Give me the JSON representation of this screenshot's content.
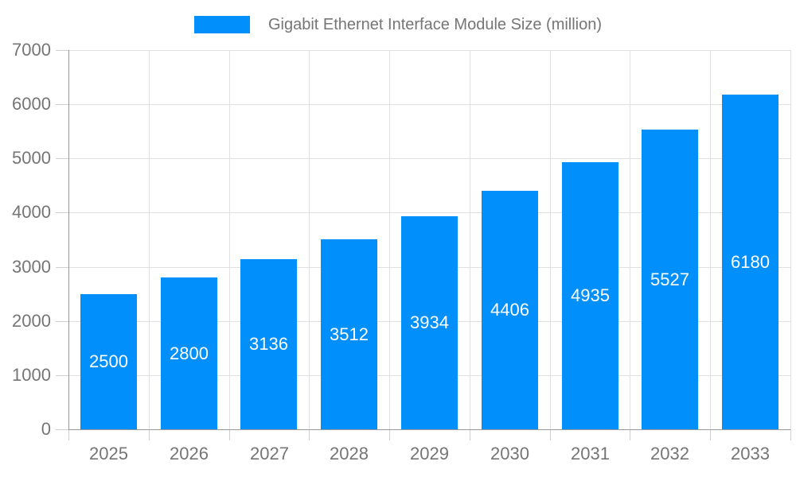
{
  "chart_data": {
    "type": "bar",
    "title": "Gigabit Ethernet Interface Module Size (million)",
    "legend_position": "top",
    "categories": [
      "2025",
      "2026",
      "2027",
      "2028",
      "2029",
      "2030",
      "2031",
      "2032",
      "2033"
    ],
    "values": [
      2500,
      2800,
      3136,
      3512,
      3934,
      4406,
      4935,
      5527,
      6180
    ],
    "series": [
      {
        "name": "Gigabit Ethernet Interface Module Size (million)",
        "values": [
          2500,
          2800,
          3136,
          3512,
          3934,
          4406,
          4935,
          5527,
          6180
        ]
      }
    ],
    "xlabel": "",
    "ylabel": "",
    "ylim": [
      0,
      7000
    ],
    "ytick_step": 1000,
    "ytick_labels": [
      "0",
      "1000",
      "2000",
      "3000",
      "4000",
      "5000",
      "6000",
      "7000"
    ],
    "grid": true,
    "value_labels_inside_bars": true,
    "colors": {
      "bar": "#008FFB",
      "axis_label": "#757575",
      "legend_text": "#757575",
      "gridline": "#E0E0E0",
      "tick": "#CFCFCF",
      "axis_line": "#999999",
      "value_label": "#FFFFFF",
      "background": "#FFFFFF"
    }
  }
}
